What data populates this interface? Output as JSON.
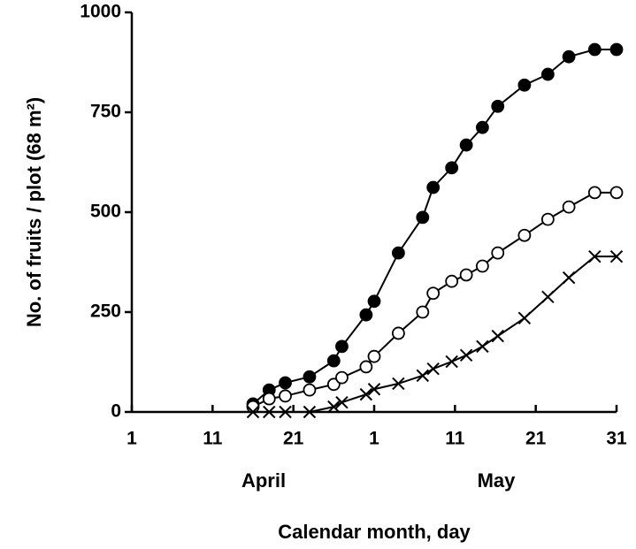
{
  "chart_data": {
    "type": "line",
    "x_label": "Calendar month, day",
    "y_label": "No. of fruits / plot (68 m²)",
    "annotations": [
      "April",
      "May"
    ],
    "x": [
      16,
      18,
      20,
      23,
      26,
      27,
      30,
      31,
      34,
      37,
      38.3,
      40.6,
      42.4,
      44.4,
      46.3,
      49.6,
      52.5,
      55.1,
      58.3,
      61
    ],
    "series": [
      {
        "color": "#000000",
        "marker": "filled-circle",
        "values": [
          20,
          55,
          73,
          88,
          128,
          164,
          243,
          277,
          398,
          487,
          562,
          611,
          668,
          712,
          765,
          818,
          845,
          889,
          907,
          907
        ]
      },
      {
        "color": "#000000",
        "marker": "open-circle",
        "values": [
          13,
          33,
          40,
          55,
          69,
          86,
          113,
          139,
          197,
          250,
          297,
          327,
          343,
          365,
          398,
          442,
          482,
          513,
          549,
          549
        ]
      },
      {
        "color": "#000000",
        "marker": "cross",
        "values": [
          0,
          0,
          0,
          0,
          13,
          24,
          44,
          57,
          71,
          91,
          108,
          126,
          142,
          164,
          190,
          235,
          288,
          336,
          389,
          389
        ]
      }
    ],
    "xlim": [
      1,
      61
    ],
    "ylim": [
      0,
      1000
    ],
    "xticks": [
      1,
      11,
      21,
      {
        "value": 31,
        "label": "1"
      },
      {
        "value": 41,
        "label": "11"
      },
      {
        "value": 51,
        "label": "21"
      },
      {
        "value": 61,
        "label": "31"
      }
    ],
    "yticks": [
      0,
      250,
      500,
      750,
      1000
    ],
    "grid": false
  }
}
